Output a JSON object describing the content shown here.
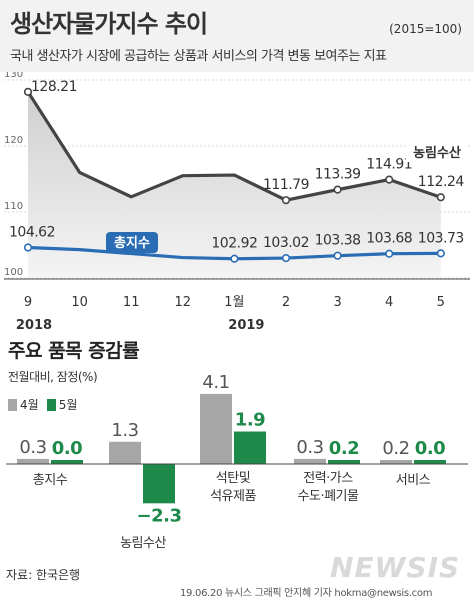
{
  "header": {
    "title": "생산자물가지수 추이",
    "unit": "(2015=100)",
    "subtitle": "국내 생산자가 시장에 공급하는 상품과 서비스의 가격 변동 보여주는 지표"
  },
  "colors": {
    "agri": "#444444",
    "total": "#2a6db5",
    "april": "#a6a6a6",
    "may": "#1e8a4a",
    "agri_fill_top": "#cfcfcf",
    "agri_fill_bottom": "#f4f4f4"
  },
  "chart_data": [
    {
      "type": "line",
      "x": [
        "9",
        "10",
        "11",
        "12",
        "1월",
        "2",
        "3",
        "4",
        "5"
      ],
      "year_labels": [
        "2018",
        "2019"
      ],
      "yticks": [
        "130",
        "120",
        "110",
        "100"
      ],
      "ylim": [
        100,
        130
      ],
      "series": [
        {
          "name": "농림수산",
          "values": [
            128.21,
            116.0,
            112.3,
            115.5,
            115.6,
            111.79,
            113.39,
            114.91,
            112.24
          ],
          "labels": [
            "128.21",
            "",
            "",
            "",
            "",
            "111.79",
            "113.39",
            "114.91",
            "112.24"
          ]
        },
        {
          "name": "총지수",
          "values": [
            104.62,
            104.3,
            103.7,
            103.1,
            102.92,
            103.02,
            103.38,
            103.68,
            103.73
          ],
          "labels": [
            "104.62",
            "",
            "",
            "",
            "102.92",
            "103.02",
            "103.38",
            "103.68",
            "103.73"
          ]
        }
      ]
    },
    {
      "type": "bar",
      "title": "주요 품목 증감률",
      "note": "전월대비, 잠정(%)",
      "categories": [
        "총지수",
        "농림수산",
        "석탄및 석유제품",
        "전력·가스 수도·폐기물",
        "서비스"
      ],
      "category_lines": [
        [
          "총지수"
        ],
        [
          "농림수산"
        ],
        [
          "석탄및",
          "석유제품"
        ],
        [
          "전력·가스",
          "수도·폐기물"
        ],
        [
          "서비스"
        ]
      ],
      "series": [
        {
          "name": "4월",
          "values": [
            0.3,
            1.3,
            4.1,
            0.3,
            0.2
          ],
          "labels": [
            "0.3",
            "1.3",
            "4.1",
            "0.3",
            "0.2"
          ]
        },
        {
          "name": "5월",
          "values": [
            0.0,
            -2.3,
            1.9,
            0.2,
            0.0
          ],
          "labels": [
            "0.0",
            "−2.3",
            "1.9",
            "0.2",
            "0.0"
          ]
        }
      ]
    }
  ],
  "footer": {
    "source": "자료: 한국은행",
    "credit": "19.06.20 뉴시스 그래픽 안지혜 기자 hokma@newsis.com",
    "watermark": "NEWSIS"
  }
}
